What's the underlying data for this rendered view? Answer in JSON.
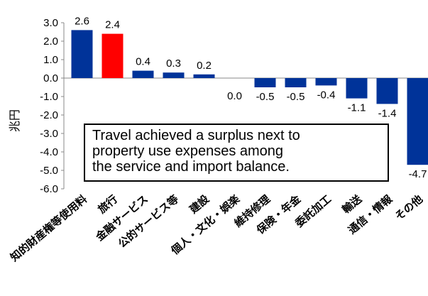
{
  "chart_data": {
    "type": "bar",
    "ylabel": "兆円",
    "ylim": [
      -6.0,
      3.0
    ],
    "yticks": [
      "3.0",
      "2.0",
      "1.0",
      "0.0",
      "-1.0",
      "-2.0",
      "-3.0",
      "-4.0",
      "-5.0",
      "-6.0"
    ],
    "categories": [
      "知的財産権等使用料",
      "旅行",
      "金融サービス",
      "公的サービス等",
      "建設",
      "個人・文化・娯楽",
      "維持修理",
      "保険・年金",
      "委託加工",
      "輸送",
      "通信・情報",
      "その他"
    ],
    "values": [
      2.6,
      2.4,
      0.4,
      0.3,
      0.2,
      0.0,
      -0.5,
      -0.5,
      -0.4,
      -1.1,
      -1.4,
      -4.7
    ],
    "value_labels": [
      "2.6",
      "2.4",
      "0.4",
      "0.3",
      "0.2",
      "0.0",
      "-0.5",
      "-0.5",
      "-0.4",
      "-1.1",
      "-1.4",
      "-4.7"
    ],
    "highlight_index": 1,
    "colors": {
      "default": "#003399",
      "highlight": "#ff0000"
    },
    "grid": false,
    "annotation": {
      "lines": [
        "Travel achieved a surplus next to",
        "property use expenses among",
        "the service and import balance."
      ]
    }
  }
}
